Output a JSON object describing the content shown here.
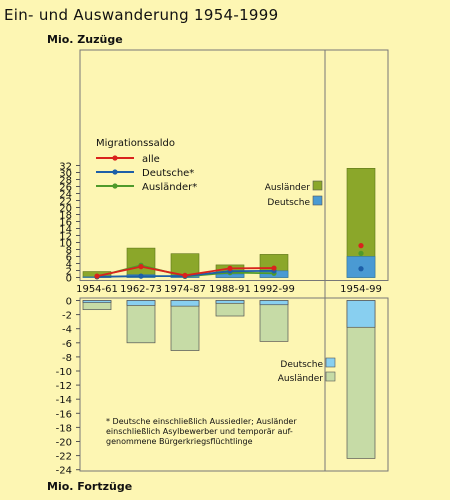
{
  "title": "Ein- und Auswanderung 1954-1999",
  "unit_top": "Mio. Zuzüge",
  "unit_bottom": "Mio. Fortzüge",
  "colors": {
    "auslaender_in": "#8ba72a",
    "deutsche_in": "#4a9ad3",
    "deutsche_out": "#88cff0",
    "auslaender_out": "#c6dba6",
    "line_alle": "#d9231d",
    "line_deutsche": "#1d5fa8",
    "line_auslaender": "#4f9a2b",
    "background": "#fdf6b3"
  },
  "legend_saldo": {
    "title": "Migrationssaldo",
    "items": [
      {
        "label": "alle",
        "color": "#d9231d"
      },
      {
        "label": "Deutsche*",
        "color": "#1d5fa8"
      },
      {
        "label": "Ausländer*",
        "color": "#4f9a2b"
      }
    ]
  },
  "legend_in": [
    {
      "label": "Ausländer",
      "color": "#8ba72a"
    },
    {
      "label": "Deutsche",
      "color": "#4a9ad3"
    }
  ],
  "legend_out": [
    {
      "label": "Deutsche",
      "color": "#88cff0"
    },
    {
      "label": "Ausländer",
      "color": "#c6dba6"
    }
  ],
  "footnote": [
    "* Deutsche einschließlich Aussiedler; Ausländer",
    "einschließlich Asylbewerber und temporär auf-",
    "genommene Bürgerkriegsflüchtlinge"
  ],
  "chart_data": {
    "type": "bar",
    "categories": [
      "1954-61",
      "1962-73",
      "1974-87",
      "1988-91",
      "1992-99",
      "1954-99"
    ],
    "yticks_top": [
      0,
      2,
      4,
      6,
      8,
      10,
      12,
      14,
      16,
      18,
      20,
      22,
      24,
      26,
      28,
      30,
      32
    ],
    "yticks_bottom": [
      0,
      -2,
      -4,
      -6,
      -8,
      -10,
      -12,
      -14,
      -16,
      -18,
      -20,
      -22,
      -24
    ],
    "zuzuege": {
      "deutsche": [
        0.2,
        0.8,
        0.6,
        1.0,
        1.9,
        6.0
      ],
      "auslaender": [
        1.7,
        8.4,
        6.8,
        3.6,
        6.6,
        31.2
      ]
    },
    "fortzuege": {
      "deutsche": [
        -0.3,
        -0.7,
        -0.8,
        -0.4,
        -0.6,
        -3.8
      ],
      "auslaender": [
        -1.3,
        -6.0,
        -7.1,
        -2.2,
        -5.8,
        -22.4
      ]
    },
    "saldo": {
      "alle": [
        0.4,
        3.1,
        0.6,
        2.6,
        2.7,
        9.1
      ],
      "deutsche": [
        0.2,
        0.4,
        0.4,
        1.8,
        1.9,
        2.5
      ],
      "auslaender": [
        0.2,
        3.5,
        0.3,
        1.4,
        1.2,
        6.9
      ]
    }
  }
}
